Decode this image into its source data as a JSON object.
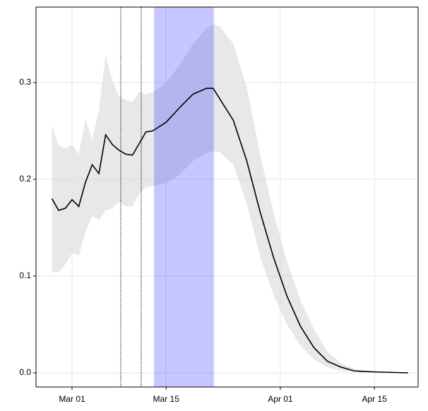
{
  "chart_data": {
    "type": "line",
    "x": [
      -2,
      -1,
      0,
      1,
      2,
      3,
      4,
      5,
      6,
      7,
      8,
      9,
      10,
      11,
      12,
      13,
      15,
      17,
      19,
      21,
      22,
      23,
      25,
      27,
      29,
      31,
      33,
      35,
      37,
      39,
      41,
      43,
      46,
      51
    ],
    "values": [
      0.18,
      0.168,
      0.17,
      0.179,
      0.172,
      0.197,
      0.215,
      0.206,
      0.246,
      0.236,
      0.23,
      0.226,
      0.225,
      0.237,
      0.249,
      0.25,
      0.259,
      0.274,
      0.288,
      0.294,
      0.294,
      0.283,
      0.261,
      0.219,
      0.166,
      0.119,
      0.079,
      0.048,
      0.026,
      0.012,
      0.006,
      0.002,
      0.001,
      0.0
    ],
    "lower": [
      0.104,
      0.104,
      0.112,
      0.124,
      0.121,
      0.146,
      0.162,
      0.158,
      0.168,
      0.17,
      0.177,
      0.172,
      0.172,
      0.185,
      0.192,
      0.193,
      0.196,
      0.205,
      0.219,
      0.227,
      0.229,
      0.228,
      0.215,
      0.175,
      0.12,
      0.08,
      0.05,
      0.028,
      0.014,
      0.006,
      0.002,
      0.001,
      0.0,
      0.0
    ],
    "upper": [
      0.256,
      0.235,
      0.232,
      0.236,
      0.226,
      0.262,
      0.24,
      0.272,
      0.328,
      0.302,
      0.285,
      0.282,
      0.28,
      0.29,
      0.288,
      0.29,
      0.3,
      0.318,
      0.34,
      0.356,
      0.36,
      0.358,
      0.34,
      0.295,
      0.225,
      0.165,
      0.115,
      0.075,
      0.045,
      0.022,
      0.01,
      0.004,
      0.001,
      0.0
    ],
    "color": "#000000",
    "band_color": "#d9d9d9",
    "vlines": [
      8.25,
      11.3
    ],
    "shade": [
      13.2,
      22.1
    ],
    "shade_color": "#0000ff",
    "xlim": [
      -4.36,
      52.5
    ],
    "xticks": [
      {
        "value": 1,
        "label": "Mar 01"
      },
      {
        "value": 15,
        "label": "Mar 15"
      },
      {
        "value": 32,
        "label": "Apr 01"
      },
      {
        "value": 46,
        "label": "Apr 15"
      }
    ],
    "ylim": [
      -0.0146,
      0.378
    ],
    "yticks": [
      {
        "value": 0,
        "label": "0.0"
      },
      0.1,
      0.2,
      0.3
    ],
    "grid": true
  }
}
